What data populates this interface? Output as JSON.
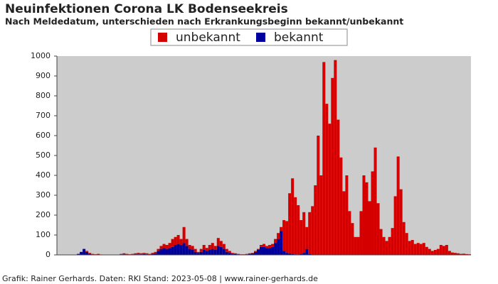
{
  "chart_data": {
    "type": "stacked_bar",
    "title": "Neuinfektionen Corona LK Bodenseekreis",
    "subtitle": "Nach Meldedatum, unterschieden nach Erkrankungsbeginn bekannt/unbekannt",
    "footer": "Grafik: Rainer Gerhards. Daten: RKI Stand: 2023-05-08 | www.rainer-gerhards.de",
    "categories": [
      null,
      null,
      null,
      null,
      null,
      null,
      null,
      null,
      null,
      null,
      null,
      null,
      null,
      null,
      null,
      null,
      null,
      null,
      null,
      null,
      null,
      null,
      null,
      null,
      null,
      null,
      null,
      null,
      null,
      null,
      null,
      null,
      null,
      null,
      null,
      null,
      null,
      null,
      null,
      null,
      null,
      null,
      null,
      null,
      null,
      null,
      null,
      null,
      null,
      null,
      null,
      null,
      null,
      null,
      null,
      null,
      null,
      null,
      null,
      null,
      null,
      null,
      null,
      null,
      null,
      null,
      null,
      null,
      null,
      null,
      null,
      null,
      null,
      null,
      null,
      null,
      null,
      null,
      null,
      null,
      null,
      null,
      null,
      null,
      null,
      null,
      null,
      null,
      null,
      null,
      null,
      null,
      null,
      null,
      null,
      null,
      null,
      null,
      null,
      null,
      null,
      null,
      null,
      null,
      null,
      null,
      null,
      null,
      null,
      null,
      null,
      null,
      null,
      null,
      null,
      null,
      null,
      null,
      null,
      null,
      null,
      null,
      null,
      null,
      null,
      null,
      null,
      null,
      null,
      null,
      null,
      null,
      null,
      null,
      null,
      null,
      null,
      null,
      null,
      null,
      null,
      null,
      null,
      null,
      null
    ],
    "series": [
      {
        "name": "unbekannt",
        "color": "#d40000",
        "values": [
          0,
          0,
          0,
          0,
          0,
          0,
          0,
          0,
          0,
          0,
          5,
          5,
          3,
          3,
          5,
          2,
          0,
          0,
          0,
          0,
          0,
          0,
          2,
          5,
          3,
          2,
          3,
          5,
          7,
          5,
          6,
          5,
          3,
          5,
          7,
          10,
          15,
          20,
          20,
          25,
          40,
          40,
          45,
          30,
          80,
          35,
          20,
          20,
          15,
          5,
          15,
          25,
          15,
          25,
          30,
          20,
          40,
          30,
          25,
          15,
          10,
          5,
          3,
          2,
          1,
          1,
          2,
          3,
          2,
          5,
          5,
          10,
          15,
          10,
          15,
          15,
          20,
          30,
          20,
          155,
          160,
          302,
          380,
          287,
          248,
          170,
          205,
          110,
          210,
          245,
          350,
          600,
          400,
          970,
          760,
          660,
          890,
          980,
          680,
          490,
          320,
          400,
          220,
          160,
          90,
          90,
          220,
          400,
          365,
          270,
          420,
          540,
          260,
          130,
          90,
          70,
          90,
          135,
          295,
          495,
          330,
          165,
          110,
          70,
          75,
          55,
          60,
          55,
          60,
          40,
          30,
          20,
          25,
          30,
          50,
          45,
          50,
          20,
          12,
          10,
          8,
          5,
          6,
          4,
          3
        ]
      },
      {
        "name": "bekannt",
        "color": "#00009c",
        "values": [
          0,
          0,
          0,
          0,
          0,
          0,
          0,
          5,
          15,
          30,
          15,
          5,
          2,
          0,
          0,
          0,
          0,
          0,
          0,
          0,
          0,
          0,
          3,
          3,
          2,
          1,
          2,
          3,
          3,
          3,
          4,
          3,
          2,
          5,
          8,
          20,
          30,
          35,
          30,
          35,
          40,
          50,
          55,
          50,
          60,
          45,
          30,
          25,
          15,
          10,
          15,
          25,
          20,
          25,
          30,
          25,
          45,
          40,
          30,
          15,
          10,
          5,
          5,
          3,
          2,
          2,
          3,
          5,
          8,
          15,
          25,
          40,
          40,
          35,
          35,
          40,
          60,
          80,
          120,
          20,
          10,
          8,
          5,
          3,
          2,
          5,
          10,
          30,
          5,
          0,
          0,
          0,
          0,
          0,
          0,
          0,
          0,
          0,
          0,
          0,
          0,
          0,
          0,
          0,
          0,
          0,
          0,
          0,
          0,
          0,
          0,
          0,
          0,
          0,
          0,
          0,
          0,
          0,
          0,
          0,
          0,
          0,
          0,
          0,
          0,
          0,
          0,
          0,
          0,
          0,
          0,
          0,
          0,
          0,
          0,
          0,
          0,
          0,
          0,
          0,
          0,
          0,
          0,
          0,
          0
        ]
      }
    ],
    "ylim": [
      0,
      1000
    ],
    "yticks": [
      0,
      100,
      200,
      300,
      400,
      500,
      600,
      700,
      800,
      900,
      1000
    ],
    "grid": false,
    "legend": "top"
  }
}
